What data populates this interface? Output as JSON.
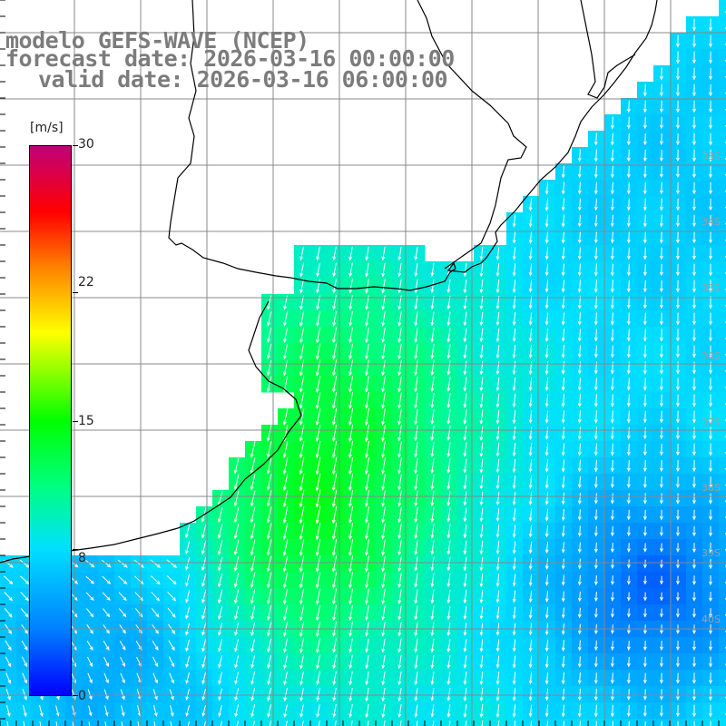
{
  "title": {
    "line1": "modelo GEFS-WAVE (NCEP)",
    "line2": "forecast date: 2026-03-16 00:00:00",
    "line3": "valid date: 2026-03-16 06:00:00"
  },
  "colorbar": {
    "unit": "[m/s]",
    "min": 0,
    "max": 30,
    "ticks": [
      "30",
      "22",
      "15",
      "8",
      "0"
    ],
    "tick_values": [
      30,
      22,
      15,
      8,
      0
    ],
    "colors": [
      "#0000ff",
      "#0080ff",
      "#00e0ff",
      "#00ff80",
      "#00ff00",
      "#a0ff00",
      "#ffff00",
      "#ff8000",
      "#ff0000",
      "#c0007a"
    ]
  },
  "map": {
    "field": "wind speed",
    "land_color": "#ffffff",
    "coastline_color": "#000000",
    "grid_color": "#888888",
    "arrow_color": "#ffffff",
    "lat_labels": [
      "33S",
      "34S",
      "35S",
      "36S",
      "37S",
      "38S",
      "39S",
      "40S"
    ]
  }
}
